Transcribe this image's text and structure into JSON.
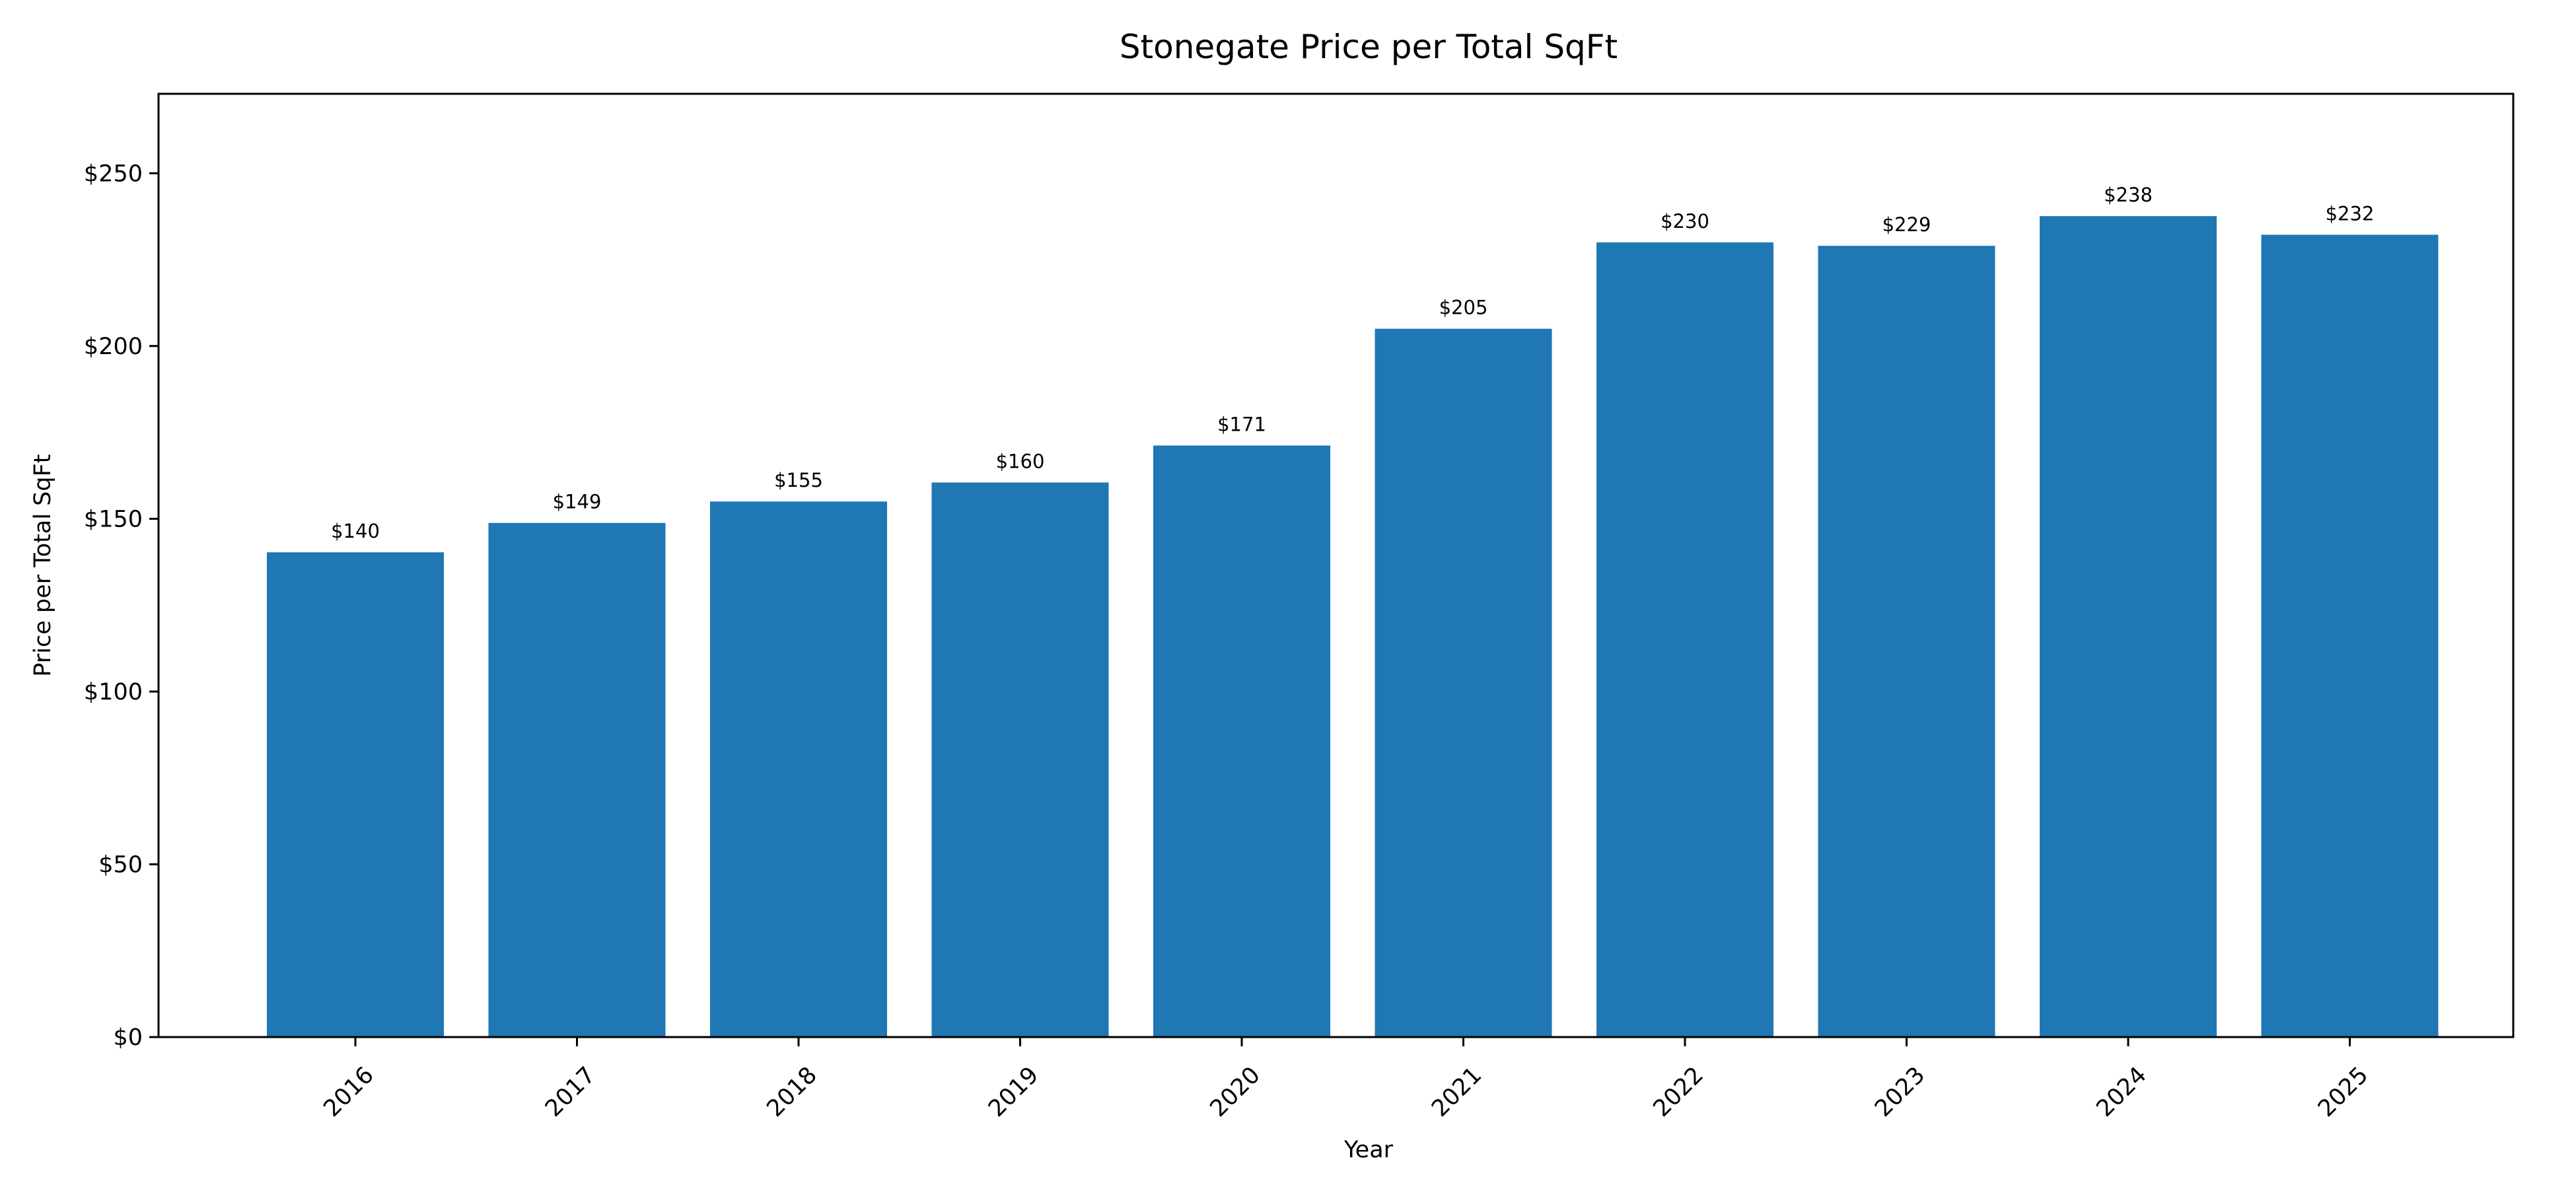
{
  "chart_data": {
    "type": "bar",
    "title": "Stonegate Price per Total SqFt",
    "xlabel": "Year",
    "ylabel": "Price per Total SqFt",
    "categories": [
      "2016",
      "2017",
      "2018",
      "2019",
      "2020",
      "2021",
      "2022",
      "2023",
      "2024",
      "2025"
    ],
    "values": [
      140.3,
      148.8,
      155.0,
      160.5,
      171.2,
      205.0,
      230.0,
      229.0,
      237.6,
      232.2
    ],
    "data_labels": [
      "$140",
      "$149",
      "$155",
      "$160",
      "$171",
      "$205",
      "$230",
      "$229",
      "$238",
      "$232"
    ],
    "yticks": [
      0,
      50,
      100,
      150,
      200,
      250
    ],
    "ytick_labels": [
      "$0",
      "$50",
      "$100",
      "$150",
      "$200",
      "$250"
    ],
    "ylim": [
      0,
      273
    ],
    "grid": false,
    "bar_color": "#1f77b4"
  }
}
